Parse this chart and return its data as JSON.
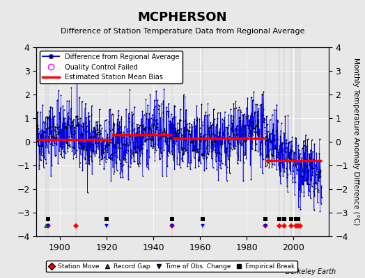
{
  "title": "MCPHERSON",
  "subtitle": "Difference of Station Temperature Data from Regional Average",
  "ylabel": "Monthly Temperature Anomaly Difference (°C)",
  "xlim": [
    1890,
    2015
  ],
  "ylim": [
    -4,
    4
  ],
  "yticks": [
    -4,
    -3,
    -2,
    -1,
    0,
    1,
    2,
    3,
    4
  ],
  "xticks": [
    1900,
    1920,
    1940,
    1960,
    1980,
    2000
  ],
  "bg_color": "#e8e8e8",
  "plot_bg_color": "#e8e8e8",
  "line_color": "#0000ff",
  "marker_color": "#000000",
  "bias_color": "#ff0000",
  "seed": 42,
  "station_moves": [
    1895,
    1907,
    1948,
    1988,
    1994,
    1996,
    1999,
    2001,
    2002,
    2003
  ],
  "record_gaps": [
    1894
  ],
  "tobs_changes": [
    1895,
    1920,
    1948,
    1961,
    1988
  ],
  "empirical_breaks": [
    1895,
    1920,
    1948,
    1961,
    1988,
    1994,
    1996,
    1999,
    2001,
    2002
  ],
  "bias_segments": [
    {
      "start": 1890,
      "end": 1922,
      "value": 0.1
    },
    {
      "start": 1922,
      "end": 1948,
      "value": 0.3
    },
    {
      "start": 1948,
      "end": 1988,
      "value": 0.15
    },
    {
      "start": 1988,
      "end": 2012,
      "value": -0.8
    }
  ],
  "watermark": "Berkeley Earth"
}
